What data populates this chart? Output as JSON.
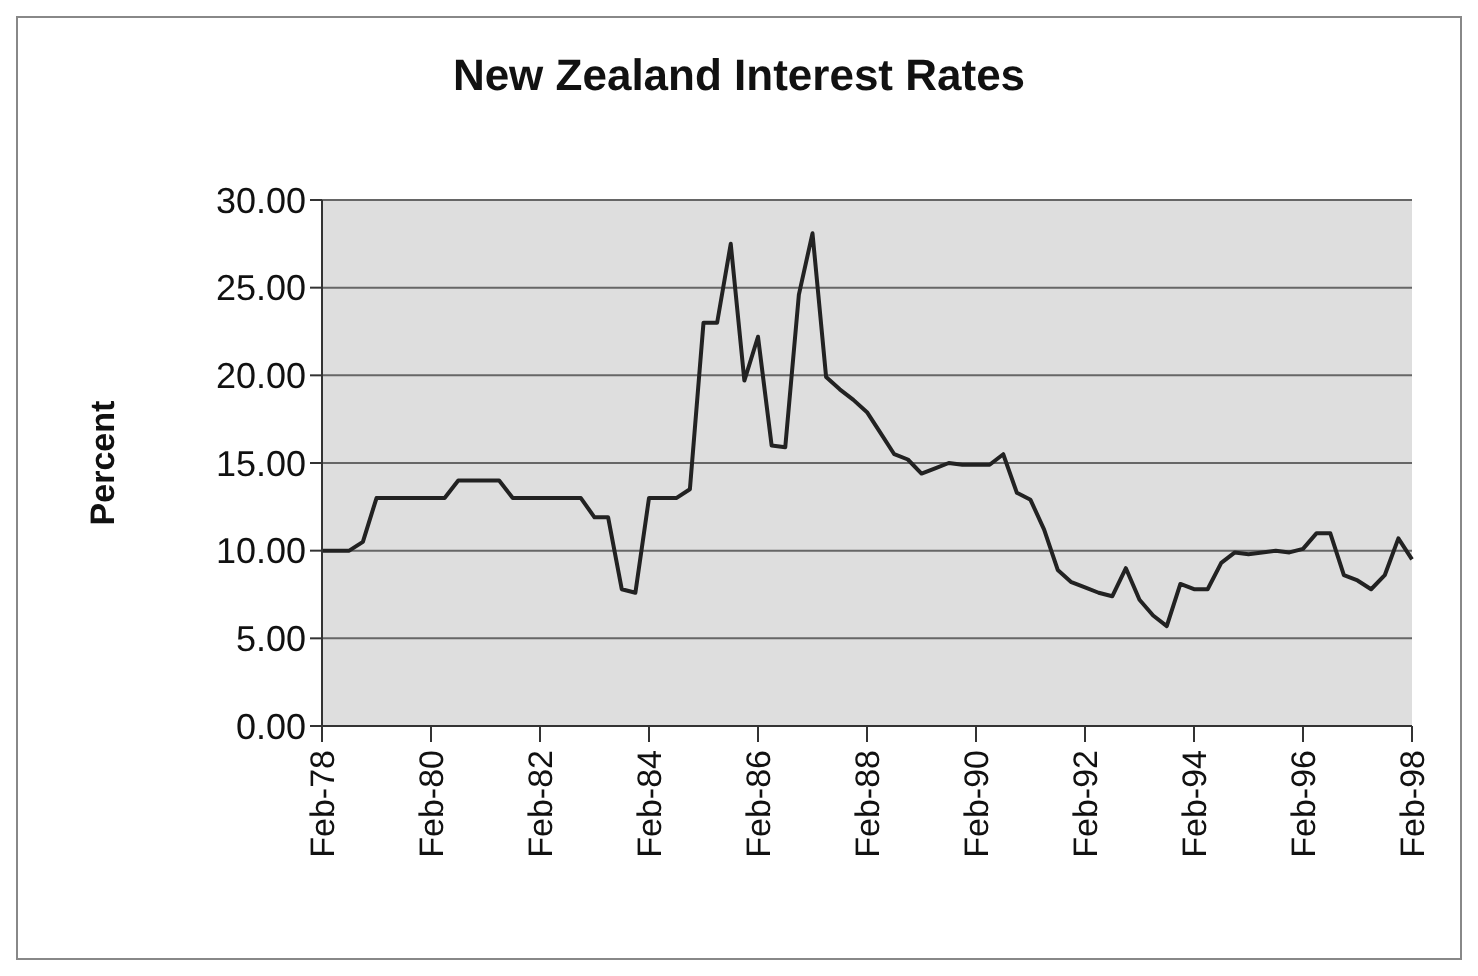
{
  "chart_data": {
    "type": "line",
    "title": "New Zealand Interest Rates",
    "ylabel": "Percent",
    "categories": [
      "Feb-78",
      null,
      null,
      null,
      null,
      null,
      null,
      null,
      "Feb-80",
      null,
      null,
      null,
      null,
      null,
      null,
      null,
      "Feb-82",
      null,
      null,
      null,
      null,
      null,
      null,
      null,
      "Feb-84",
      null,
      null,
      null,
      null,
      null,
      null,
      null,
      "Feb-86",
      null,
      null,
      null,
      null,
      null,
      null,
      null,
      "Feb-88",
      null,
      null,
      null,
      null,
      null,
      null,
      null,
      "Feb-90",
      null,
      null,
      null,
      null,
      null,
      null,
      null,
      "Feb-92",
      null,
      null,
      null,
      null,
      null,
      null,
      null,
      "Feb-94",
      null,
      null,
      null,
      null,
      null,
      null,
      null,
      "Feb-96",
      null,
      null,
      null,
      null,
      null,
      null,
      null,
      "Feb-98"
    ],
    "series": [
      {
        "color": "#222222",
        "values": [
          10.0,
          10.0,
          10.0,
          10.5,
          13.0,
          13.0,
          13.0,
          13.0,
          13.0,
          13.0,
          14.0,
          14.0,
          14.0,
          14.0,
          13.0,
          13.0,
          13.0,
          13.0,
          13.0,
          13.0,
          11.9,
          11.9,
          7.8,
          7.6,
          13.0,
          13.0,
          13.0,
          13.5,
          23.0,
          23.0,
          27.5,
          19.7,
          22.2,
          16.0,
          15.9,
          24.6,
          28.1,
          19.9,
          19.2,
          18.6,
          17.9,
          16.7,
          15.5,
          15.2,
          14.4,
          14.7,
          15.0,
          14.9,
          14.9,
          14.9,
          15.5,
          13.3,
          12.9,
          11.2,
          8.9,
          8.2,
          7.9,
          7.6,
          7.4,
          9.0,
          7.2,
          6.3,
          5.7,
          8.1,
          7.8,
          7.8,
          9.3,
          9.9,
          9.8,
          9.9,
          10.0,
          9.9,
          10.1,
          11.0,
          11.0,
          8.6,
          8.3,
          7.8,
          8.6,
          10.7,
          9.5
        ]
      }
    ],
    "ylim": [
      0,
      30
    ],
    "yticks": [
      {
        "value": 0,
        "label": "0.00"
      },
      {
        "value": 5,
        "label": "5.00"
      },
      {
        "value": 10,
        "label": "10.00"
      },
      {
        "value": 15,
        "label": "15.00"
      },
      {
        "value": 20,
        "label": "20.00"
      },
      {
        "value": 25,
        "label": "25.00"
      },
      {
        "value": 30,
        "label": "30.00"
      }
    ],
    "grid": "y",
    "legend": false,
    "marker": "none",
    "line_style": "solid"
  }
}
